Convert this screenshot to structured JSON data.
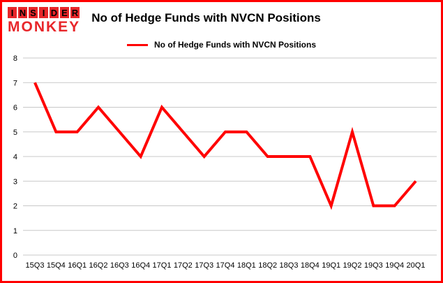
{
  "brand": {
    "line1": "INSIDER",
    "line2": "MONKEY"
  },
  "title": "No of Hedge Funds with NVCN Positions",
  "legend": "No of Hedge Funds with NVCN Positions",
  "colors": {
    "line": "#ff0000",
    "border": "#ff0000",
    "grid": "#c8c8c8",
    "text": "#000000",
    "logo_red": "#e8262a"
  },
  "chart_data": {
    "type": "line",
    "title": "No of Hedge Funds with NVCN Positions",
    "categories": [
      "15Q3",
      "15Q4",
      "16Q1",
      "16Q2",
      "16Q3",
      "16Q4",
      "17Q1",
      "17Q2",
      "17Q3",
      "17Q4",
      "18Q1",
      "18Q2",
      "18Q3",
      "18Q4",
      "19Q1",
      "19Q2",
      "19Q3",
      "19Q4",
      "20Q1"
    ],
    "values": [
      7,
      5,
      5,
      6,
      5,
      4,
      6,
      5,
      4,
      5,
      5,
      4,
      4,
      4,
      2,
      5,
      2,
      2,
      3
    ],
    "xlabel": "",
    "ylabel": "",
    "ylim": [
      0,
      8
    ],
    "yticks": [
      0,
      1,
      2,
      3,
      4,
      5,
      6,
      7,
      8
    ],
    "grid": true,
    "legend_position": "top"
  }
}
